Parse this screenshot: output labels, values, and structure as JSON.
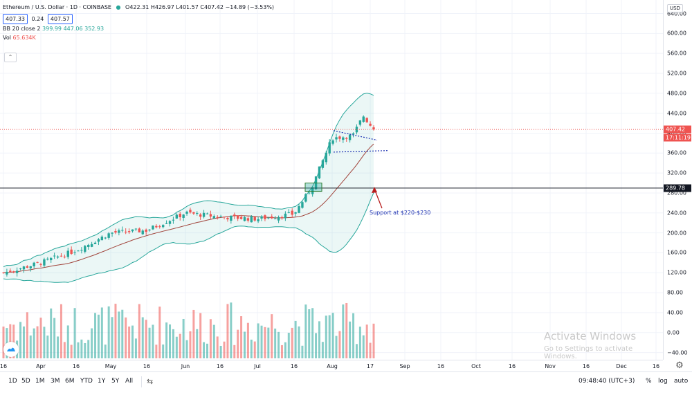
{
  "legend": {
    "title": "Ethereum / U.S. Dollar · 1D · COINBASE",
    "ohlc": "O422.31  H426.97  L401.57  C407.42  −14.89 (−3.53%)",
    "bid": "407.33",
    "spread": "0.24",
    "ask": "407.57",
    "bb_label": "BB 20 close 2",
    "bb_values": "399.99  447.06  352.93",
    "vol_label": "Vol",
    "vol_value": "65.634K"
  },
  "price_axis": {
    "currency": "USD",
    "ticks": [
      "640.00",
      "600.00",
      "560.00",
      "520.00",
      "480.00",
      "440.00",
      "400.00",
      "360.00",
      "320.00",
      "280.00",
      "240.00",
      "200.00",
      "160.00",
      "120.00",
      "80.00",
      "40.00",
      "0.00",
      "−40.00"
    ],
    "tick_values": [
      640,
      600,
      560,
      520,
      480,
      440,
      400,
      360,
      320,
      280,
      240,
      200,
      160,
      120,
      80,
      40,
      0,
      -40
    ],
    "last_price": "407.42",
    "countdown": "17:11:19",
    "support_level": "289.78"
  },
  "time_axis": {
    "labels": [
      "16",
      "Apr",
      "16",
      "May",
      "16",
      "Jun",
      "16",
      "Jul",
      "16",
      "Aug",
      "17",
      "Sep",
      "16",
      "Oct",
      "16",
      "Nov",
      "16",
      "Dec",
      "16"
    ]
  },
  "annotation": {
    "text": "Support at $220-$230"
  },
  "watermark": {
    "line1": "Activate Windows",
    "line2": "Go to Settings to activate Windows."
  },
  "bottom_bar": {
    "ranges": [
      "1D",
      "5D",
      "1M",
      "3M",
      "6M",
      "YTD",
      "1Y",
      "5Y",
      "All"
    ],
    "clock": "09:48:40 (UTC+3)",
    "percent": "%",
    "log": "log",
    "auto": "auto"
  },
  "colors": {
    "up": "#26a69a",
    "down": "#ef5350",
    "bands": "#26a69a",
    "basis": "#a0433a",
    "support": "#131722",
    "annotation": "#1a2fb0",
    "arrow": "#b71c1c"
  },
  "chart_data": {
    "type": "candlestick",
    "title": "Ethereum / U.S. Dollar",
    "indicators": [
      "Bollinger Bands 20 close 2",
      "Volume"
    ],
    "support_line": 289.78,
    "last_close": 407.42,
    "date_points": [
      {
        "date": "Mar 16",
        "close": 120
      },
      {
        "date": "Apr 1",
        "close": 140
      },
      {
        "date": "Apr 16",
        "close": 165
      },
      {
        "date": "May 1",
        "close": 200
      },
      {
        "date": "May 16",
        "close": 205
      },
      {
        "date": "Jun 1",
        "close": 240
      },
      {
        "date": "Jun 16",
        "close": 232
      },
      {
        "date": "Jul 1",
        "close": 228
      },
      {
        "date": "Jul 16",
        "close": 238
      },
      {
        "date": "Jul 24",
        "close": 290
      },
      {
        "date": "Aug 1",
        "close": 390
      },
      {
        "date": "Aug 10",
        "close": 395
      },
      {
        "date": "Aug 15",
        "close": 435
      },
      {
        "date": "Aug 18",
        "close": 407.42
      }
    ]
  }
}
